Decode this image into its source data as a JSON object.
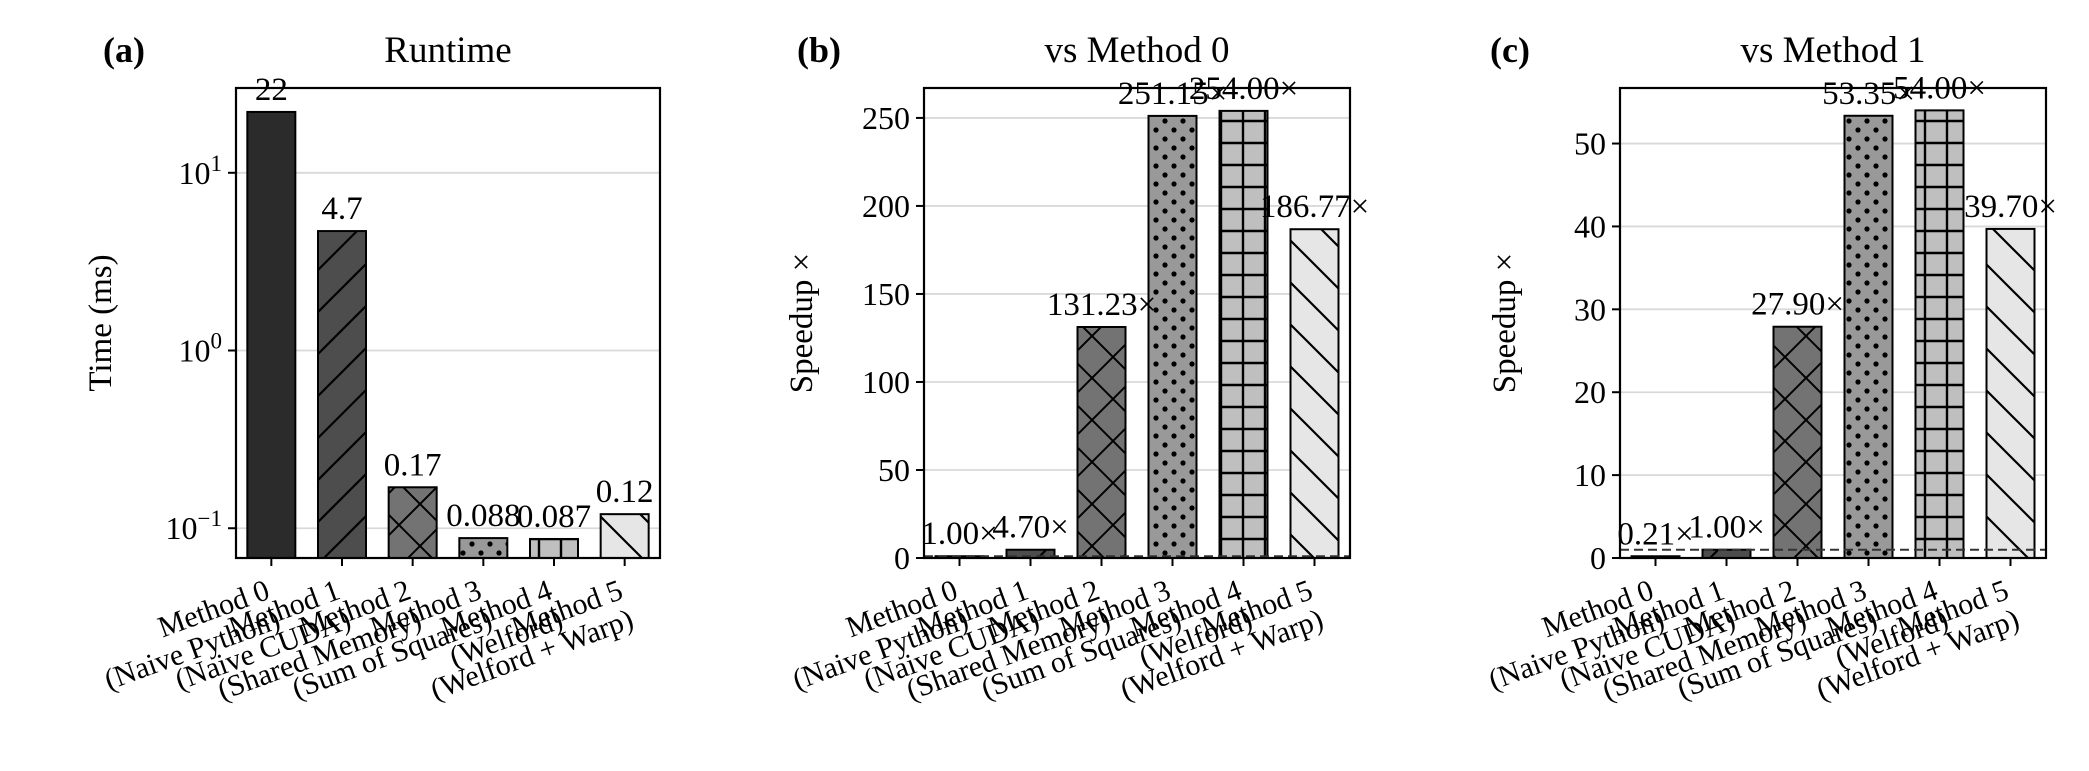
{
  "chart_data": [
    {
      "panel_label": "(a)",
      "type": "bar",
      "title": "Runtime",
      "ylabel": "Time (ms)",
      "xlabel": "",
      "yscale": "log",
      "ylim": [
        0.068,
        30
      ],
      "yticks": [
        0.1,
        1,
        10
      ],
      "ytick_labels": [
        {
          "base": "10",
          "exp": "−1"
        },
        {
          "base": "10",
          "exp": "0"
        },
        {
          "base": "10",
          "exp": "1"
        }
      ],
      "categories": [
        "Method 0\n(Naive Python)",
        "Method 1\n(Naive CUDA)",
        "Method 2\n(Shared Memory)",
        "Method 3\n(Sum of Squares)",
        "Method 4\n(Welford)",
        "Method 5\n(Welford + Warp)"
      ],
      "values": [
        22,
        4.7,
        0.17,
        0.088,
        0.087,
        0.12
      ],
      "data_labels": [
        "22",
        "4.7",
        "0.17",
        "0.088",
        "0.087",
        "0.12"
      ],
      "grid": "y",
      "reference_line": null
    },
    {
      "panel_label": "(b)",
      "type": "bar",
      "title": "vs Method 0",
      "ylabel": "Speedup ×",
      "xlabel": "",
      "yscale": "linear",
      "ylim": [
        0,
        267
      ],
      "yticks": [
        0,
        50,
        100,
        150,
        200,
        250
      ],
      "categories": [
        "Method 0\n(Naive Python)",
        "Method 1\n(Naive CUDA)",
        "Method 2\n(Shared Memory)",
        "Method 3\n(Sum of Squares)",
        "Method 4\n(Welford)",
        "Method 5\n(Welford + Warp)"
      ],
      "values": [
        1.0,
        4.7,
        131.23,
        251.15,
        254.0,
        186.77
      ],
      "data_labels": [
        "1.00×",
        "4.70×",
        "131.23×",
        "251.15×",
        "254.00×",
        "186.77×"
      ],
      "grid": "y",
      "reference_line": 1
    },
    {
      "panel_label": "(c)",
      "type": "bar",
      "title": "vs Method 1",
      "ylabel": "Speedup ×",
      "xlabel": "",
      "yscale": "linear",
      "ylim": [
        0,
        56.7
      ],
      "yticks": [
        0,
        10,
        20,
        30,
        40,
        50
      ],
      "categories": [
        "Method 0\n(Naive Python)",
        "Method 1\n(Naive CUDA)",
        "Method 2\n(Shared Memory)",
        "Method 3\n(Sum of Squares)",
        "Method 4\n(Welford)",
        "Method 5\n(Welford + Warp)"
      ],
      "values": [
        0.21,
        1.0,
        27.9,
        53.35,
        54.0,
        39.7
      ],
      "data_labels": [
        "0.21×",
        "1.00×",
        "27.90×",
        "53.35×",
        "54.00×",
        "39.70×"
      ],
      "grid": "y",
      "reference_line": 1
    }
  ],
  "styles": {
    "bar_colors": [
      "#2b2b2b",
      "#4d4d4d",
      "#737373",
      "#999999",
      "#bfbfbf",
      "#e6e6e6"
    ],
    "hatches": [
      "none",
      "diag-fwd",
      "cross",
      "dots",
      "grid",
      "diag-back"
    ],
    "edge_color": "#000000",
    "grid_color": "#d9d9d9",
    "ref_line_color": "#333333"
  }
}
